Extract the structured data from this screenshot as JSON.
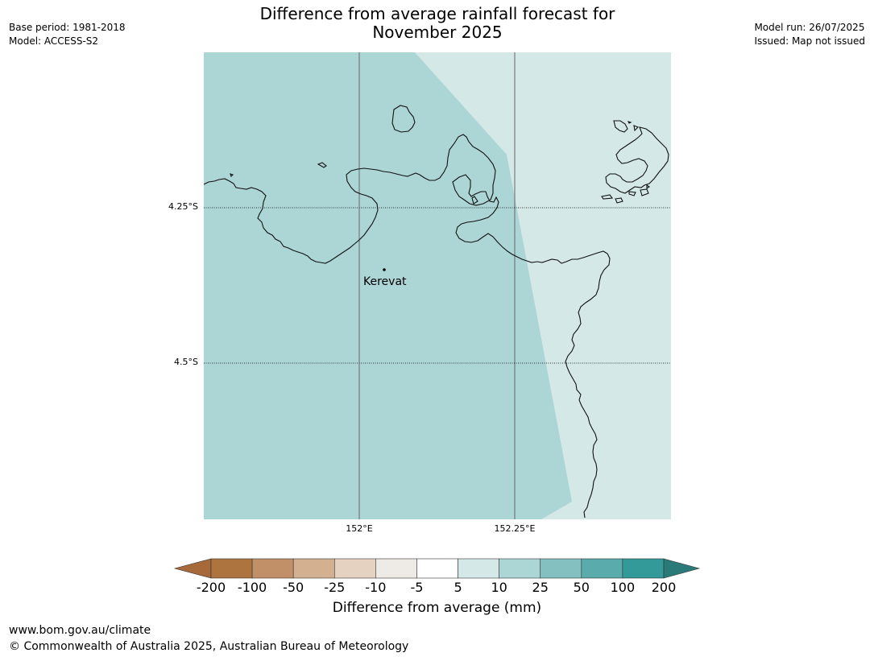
{
  "title_line1": "Difference from average rainfall forecast for",
  "title_line2": "November 2025",
  "meta_left": [
    "Base period: 1981-2018",
    "Model: ACCESS-S2"
  ],
  "meta_right": [
    "Model run: 26/07/2025",
    "Issued: Map not issued"
  ],
  "lat_labels": [
    "4.25°S",
    "4.5°S"
  ],
  "lon_labels": [
    "152°E",
    "152.25°E"
  ],
  "place": "Kerevat",
  "colorbar": {
    "ticks": [
      "-200",
      "-100",
      "-50",
      "-25",
      "-10",
      "-5",
      "5",
      "10",
      "25",
      "50",
      "100",
      "200"
    ],
    "colors": [
      "#a8693a",
      "#ae7440",
      "#c29068",
      "#d3b090",
      "#e5d2c0",
      "#eeebe7",
      "#ffffff",
      "#d4e8e8",
      "#acd5d5",
      "#84c0bf",
      "#5aabac",
      "#339a99",
      "#2a7a7a"
    ],
    "label": "Difference from average (mm)"
  },
  "map_fill": {
    "west": "#acd5d5",
    "east": "#d4e8e8"
  },
  "footer": [
    "www.bom.gov.au/climate",
    "© Commonwealth of Australia 2025, Australian Bureau of Meteorology"
  ]
}
